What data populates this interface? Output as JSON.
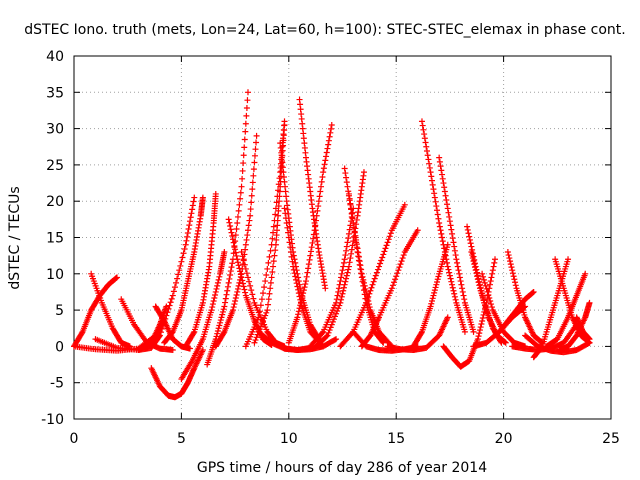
{
  "chart_data": {
    "type": "scatter",
    "title": "dSTEC Iono. truth (mets, Lon=24, Lat=60, h=100): STEC-STEC_elemax in phase cont.",
    "xlabel": "GPS time / hours of day 286 of year 2014",
    "ylabel": "dSTEC  / TECUs",
    "xlim": [
      0,
      25
    ],
    "ylim": [
      -10,
      40
    ],
    "xticks": [
      "0",
      "5",
      "10",
      "15",
      "20",
      "25"
    ],
    "yticks": [
      "-10",
      "-5",
      "0",
      "5",
      "10",
      "15",
      "20",
      "25",
      "30",
      "35",
      "40"
    ],
    "grid": true,
    "legend": "none",
    "marker": "+",
    "color": "#ff0000",
    "series": [
      {
        "x": [
          0.0,
          0.4,
          0.8,
          1.2,
          1.6,
          2.0
        ],
        "y": [
          0.0,
          2.0,
          5.0,
          7.0,
          8.5,
          9.5
        ]
      },
      {
        "x": [
          0.0,
          1.0,
          2.0,
          3.0,
          3.8,
          4.2
        ],
        "y": [
          0.0,
          -0.4,
          -0.6,
          -0.3,
          1.5,
          3.5
        ]
      },
      {
        "x": [
          0.8,
          1.3,
          1.8,
          2.2,
          2.6
        ],
        "y": [
          10.0,
          6.0,
          2.5,
          0.5,
          0.0
        ]
      },
      {
        "x": [
          2.2,
          2.8,
          3.4,
          4.0,
          4.6
        ],
        "y": [
          6.5,
          3.0,
          0.5,
          -0.3,
          -0.5
        ]
      },
      {
        "x": [
          1.0,
          2.0,
          3.0,
          3.6,
          4.0,
          4.3
        ],
        "y": [
          1.0,
          -0.2,
          -0.5,
          0.5,
          3.0,
          5.5
        ]
      },
      {
        "x": [
          3.8,
          4.2,
          4.6,
          5.0,
          5.4
        ],
        "y": [
          5.5,
          3.5,
          1.0,
          0.0,
          -0.3
        ]
      },
      {
        "x": [
          3.6,
          4.0,
          4.4,
          4.7,
          5.0,
          5.3,
          5.6,
          6.0
        ],
        "y": [
          -3.0,
          -5.5,
          -6.8,
          -7.0,
          -6.5,
          -5.0,
          -3.0,
          -0.5
        ]
      },
      {
        "x": [
          4.2,
          4.6,
          5.0,
          5.3,
          5.6,
          5.9,
          6.0
        ],
        "y": [
          0.5,
          2.0,
          5.0,
          9.0,
          13.0,
          18.0,
          20.5
        ]
      },
      {
        "x": [
          3.0,
          3.6,
          4.0,
          4.6,
          5.2,
          5.6
        ],
        "y": [
          -0.5,
          -0.2,
          1.5,
          7.0,
          14.0,
          20.5
        ]
      },
      {
        "x": [
          5.0,
          5.5,
          6.0,
          6.4,
          6.8,
          7.0
        ],
        "y": [
          -4.5,
          -2.0,
          1.0,
          5.0,
          10.0,
          13.0
        ]
      },
      {
        "x": [
          5.2,
          5.6,
          6.0,
          6.3,
          6.5,
          6.6
        ],
        "y": [
          0.0,
          2.0,
          6.0,
          11.0,
          17.0,
          21.0
        ]
      },
      {
        "x": [
          6.2,
          6.6,
          7.0,
          7.4,
          7.8,
          8.1
        ],
        "y": [
          -2.5,
          1.0,
          5.5,
          12.0,
          22.0,
          35.0
        ]
      },
      {
        "x": [
          6.6,
          7.0,
          7.4,
          7.8,
          8.2,
          8.5
        ],
        "y": [
          0.0,
          2.0,
          5.0,
          10.0,
          18.0,
          29.0
        ]
      },
      {
        "x": [
          7.2,
          7.6,
          8.0,
          8.4,
          8.8,
          9.2
        ],
        "y": [
          17.5,
          12.0,
          7.0,
          3.5,
          1.0,
          0.2
        ]
      },
      {
        "x": [
          7.8,
          8.4,
          9.0,
          9.4,
          9.8
        ],
        "y": [
          13.0,
          6.0,
          2.0,
          0.5,
          0.0
        ]
      },
      {
        "x": [
          8.0,
          8.6,
          9.2,
          9.6,
          9.8
        ],
        "y": [
          0.0,
          4.0,
          14.0,
          24.0,
          31.0
        ]
      },
      {
        "x": [
          8.4,
          9.0,
          9.4,
          9.6,
          9.8
        ],
        "y": [
          0.5,
          5.0,
          14.0,
          22.0,
          30.5
        ]
      },
      {
        "x": [
          9.6,
          9.9,
          10.2,
          10.6,
          11.0,
          11.4
        ],
        "y": [
          28.0,
          20.0,
          13.0,
          7.0,
          3.0,
          1.0
        ]
      },
      {
        "x": [
          9.8,
          10.2,
          10.6,
          11.0,
          11.6
        ],
        "y": [
          19.0,
          11.0,
          5.5,
          2.0,
          0.0
        ]
      },
      {
        "x": [
          8.6,
          9.2,
          9.8,
          10.4,
          11.0
        ],
        "y": [
          2.0,
          0.5,
          -0.3,
          -0.5,
          -0.2
        ]
      },
      {
        "x": [
          9.8,
          10.4,
          11.0,
          11.6,
          12.2
        ],
        "y": [
          -0.3,
          -0.5,
          -0.4,
          0.0,
          1.0
        ]
      },
      {
        "x": [
          10.0,
          10.4,
          10.8,
          11.2,
          11.6,
          12.0
        ],
        "y": [
          0.5,
          4.0,
          9.0,
          16.0,
          24.0,
          30.5
        ]
      },
      {
        "x": [
          10.5,
          10.8,
          11.1,
          11.4,
          11.7
        ],
        "y": [
          34.0,
          26.0,
          19.0,
          13.0,
          8.0
        ]
      },
      {
        "x": [
          11.0,
          11.6,
          12.2,
          12.6,
          13.0
        ],
        "y": [
          0.0,
          2.0,
          6.0,
          12.0,
          19.0
        ]
      },
      {
        "x": [
          11.2,
          11.8,
          12.4,
          12.8,
          13.2,
          13.5
        ],
        "y": [
          -0.2,
          1.5,
          6.0,
          11.0,
          18.0,
          24.0
        ]
      },
      {
        "x": [
          12.6,
          13.0,
          13.4,
          13.8,
          14.2,
          14.8
        ],
        "y": [
          24.5,
          17.0,
          10.0,
          5.0,
          2.0,
          0.0
        ]
      },
      {
        "x": [
          12.8,
          13.2,
          13.6,
          14.0,
          14.4
        ],
        "y": [
          21.0,
          13.0,
          6.0,
          2.0,
          0.5
        ]
      },
      {
        "x": [
          13.0,
          13.6,
          14.2,
          14.8,
          15.4,
          16.0
        ],
        "y": [
          2.0,
          0.0,
          -0.5,
          -0.6,
          -0.4,
          0.0
        ]
      },
      {
        "x": [
          12.4,
          13.0,
          13.6,
          14.2,
          14.8,
          15.4
        ],
        "y": [
          0.0,
          2.0,
          6.0,
          11.0,
          16.0,
          19.5
        ]
      },
      {
        "x": [
          13.4,
          13.8,
          14.2,
          14.8,
          15.4,
          16.0
        ],
        "y": [
          0.0,
          1.5,
          4.0,
          8.0,
          13.0,
          16.0
        ]
      },
      {
        "x": [
          14.6,
          15.2,
          15.8,
          16.4,
          17.0,
          17.4
        ],
        "y": [
          0.0,
          -0.4,
          -0.5,
          -0.2,
          1.5,
          4.0
        ]
      },
      {
        "x": [
          15.8,
          16.2,
          16.6,
          17.0,
          17.4
        ],
        "y": [
          0.0,
          2.0,
          5.5,
          10.0,
          14.0
        ]
      },
      {
        "x": [
          16.2,
          16.6,
          17.0,
          17.4,
          17.8,
          18.2
        ],
        "y": [
          31.0,
          24.0,
          17.0,
          11.0,
          6.0,
          2.0
        ]
      },
      {
        "x": [
          17.0,
          17.4,
          17.8,
          18.2,
          18.6
        ],
        "y": [
          26.0,
          19.0,
          12.0,
          6.0,
          2.0
        ]
      },
      {
        "x": [
          17.2,
          17.6,
          18.0,
          18.4,
          18.8,
          19.2,
          19.6
        ],
        "y": [
          0.0,
          -1.5,
          -2.8,
          -2.0,
          1.0,
          6.0,
          12.0
        ]
      },
      {
        "x": [
          18.3,
          18.7,
          19.1,
          19.5,
          19.9
        ],
        "y": [
          16.5,
          11.0,
          6.0,
          2.5,
          0.5
        ]
      },
      {
        "x": [
          18.5,
          18.9,
          19.3,
          19.7,
          20.1
        ],
        "y": [
          13.0,
          8.0,
          4.0,
          1.5,
          0.5
        ]
      },
      {
        "x": [
          18.6,
          19.2,
          19.8,
          20.4,
          21.0
        ],
        "y": [
          0.0,
          0.5,
          2.0,
          4.0,
          5.5
        ]
      },
      {
        "x": [
          19.0,
          19.5,
          20.0,
          20.5,
          21.0
        ],
        "y": [
          10.0,
          5.0,
          2.0,
          0.5,
          0.0
        ]
      },
      {
        "x": [
          19.8,
          20.2,
          20.6,
          21.0,
          21.4
        ],
        "y": [
          2.0,
          3.5,
          5.0,
          6.5,
          7.5
        ]
      },
      {
        "x": [
          20.2,
          20.6,
          21.0,
          21.4,
          21.8
        ],
        "y": [
          13.0,
          8.0,
          4.0,
          1.5,
          0.5
        ]
      },
      {
        "x": [
          20.4,
          21.0,
          21.6,
          22.2,
          22.8,
          23.4
        ],
        "y": [
          0.0,
          -0.3,
          -0.5,
          -0.3,
          0.5,
          3.0
        ]
      },
      {
        "x": [
          21.4,
          21.8,
          22.2,
          22.6,
          23.0
        ],
        "y": [
          -1.5,
          0.0,
          4.0,
          8.0,
          12.0
        ]
      },
      {
        "x": [
          22.4,
          22.8,
          23.2,
          23.6,
          24.0
        ],
        "y": [
          12.0,
          8.0,
          4.0,
          1.5,
          0.5
        ]
      },
      {
        "x": [
          22.0,
          22.5,
          23.0,
          23.4,
          23.8
        ],
        "y": [
          0.0,
          1.0,
          4.0,
          7.0,
          10.0
        ]
      },
      {
        "x": [
          22.6,
          23.0,
          23.4,
          23.8,
          24.0
        ],
        "y": [
          -0.5,
          0.0,
          1.5,
          4.0,
          6.0
        ]
      },
      {
        "x": [
          21.0,
          21.6,
          22.2,
          22.8,
          23.4,
          24.0
        ],
        "y": [
          1.5,
          0.0,
          -0.6,
          -0.8,
          -0.5,
          0.5
        ]
      },
      {
        "x": [
          23.4,
          23.7,
          24.0
        ],
        "y": [
          4.0,
          2.0,
          1.0
        ]
      }
    ]
  }
}
